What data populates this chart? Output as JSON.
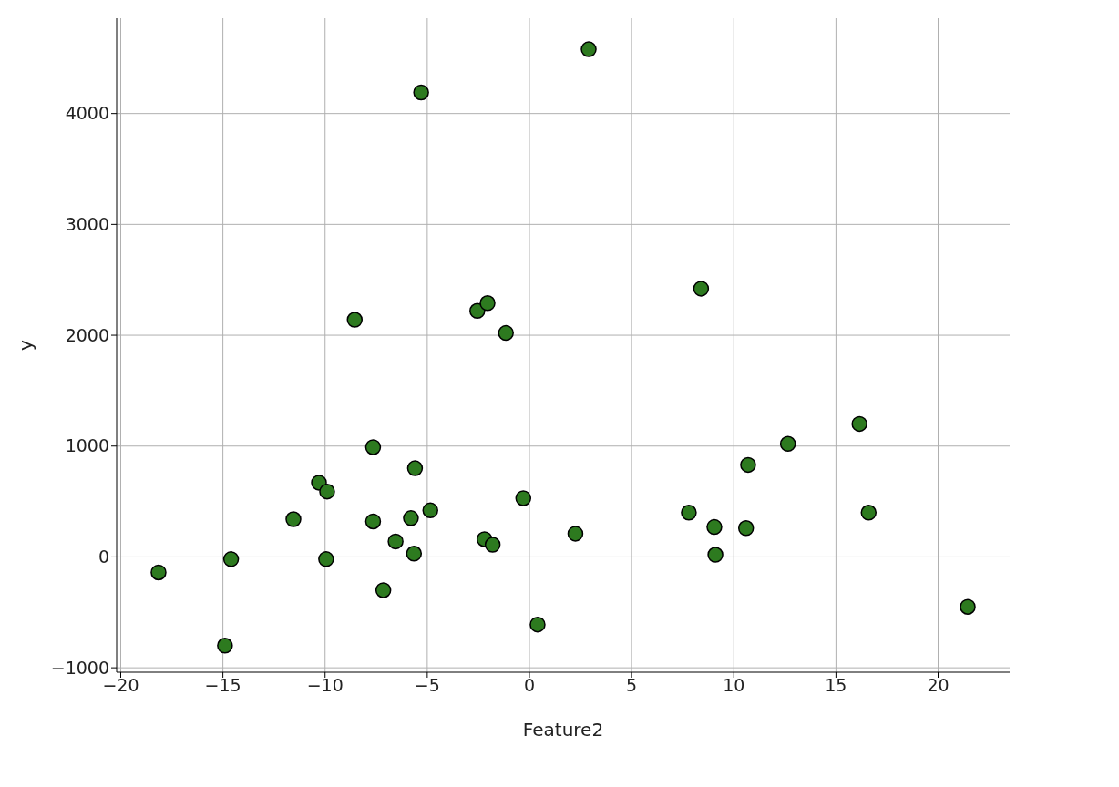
{
  "chart_data": {
    "type": "scatter",
    "xlabel": "Feature2",
    "ylabel": "y",
    "x": [
      -18.15,
      -14.9,
      -14.6,
      -11.55,
      -10.3,
      -9.9,
      -9.95,
      -8.55,
      -7.65,
      -7.65,
      -7.15,
      -6.55,
      -5.8,
      -5.65,
      -5.6,
      -5.3,
      -4.85,
      -2.55,
      -2.2,
      -2.05,
      -1.8,
      -1.15,
      -0.3,
      0.4,
      2.25,
      2.9,
      7.8,
      8.4,
      9.05,
      9.1,
      10.6,
      10.7,
      12.65,
      16.15,
      16.6,
      21.45
    ],
    "series": [
      {
        "color": "#2d7a1f",
        "values": [
          -140,
          -800,
          -20,
          340,
          670,
          590,
          -20,
          2140,
          990,
          320,
          -300,
          140,
          350,
          30,
          800,
          4190,
          420,
          2220,
          160,
          2290,
          110,
          2020,
          530,
          -610,
          210,
          4580,
          400,
          2420,
          270,
          20,
          260,
          830,
          1020,
          1200,
          400,
          -450
        ]
      }
    ],
    "xlim": [
      -20.2,
      23.5
    ],
    "ylim": [
      -1040,
      4860
    ],
    "xticks": [
      {
        "value": -20,
        "label": "−20"
      },
      {
        "value": -15,
        "label": "−15"
      },
      {
        "value": -10,
        "label": "−10"
      },
      {
        "value": -5,
        "label": "−5"
      },
      0,
      5,
      10,
      15,
      20
    ],
    "yticks": [
      {
        "value": -1000,
        "label": "−1000"
      },
      0,
      1000,
      2000,
      3000,
      4000
    ],
    "grid": true,
    "marker": "circle"
  }
}
